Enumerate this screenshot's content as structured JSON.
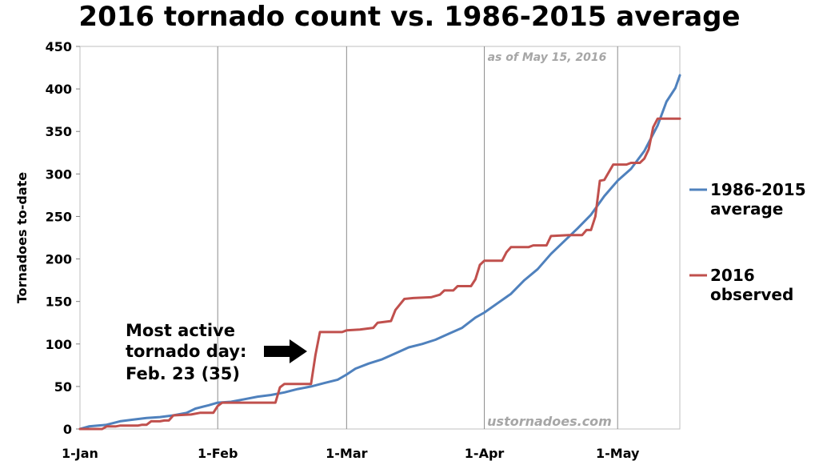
{
  "chart_data": {
    "type": "line",
    "title": "2016 tornado count vs. 1986-2015 average",
    "xlabel": "",
    "ylabel": "Tornadoes to-date",
    "xlim_day_of_year": [
      1,
      136
    ],
    "ylim": [
      0,
      450
    ],
    "yticks": [
      0,
      50,
      100,
      150,
      200,
      250,
      300,
      350,
      400,
      450
    ],
    "xticks": [
      {
        "label": "1-Jan",
        "day": 1
      },
      {
        "label": "1-Feb",
        "day": 32
      },
      {
        "label": "1-Mar",
        "day": 61
      },
      {
        "label": "1-Apr",
        "day": 92
      },
      {
        "label": "1-May",
        "day": 122
      }
    ],
    "grid": "vertical at month starts",
    "legend_position": "right",
    "series": [
      {
        "name": "1986-2015 average",
        "color": "#4f81bd",
        "points": [
          [
            1,
            0
          ],
          [
            3,
            3
          ],
          [
            5,
            4
          ],
          [
            7,
            5
          ],
          [
            10,
            9
          ],
          [
            13,
            11
          ],
          [
            16,
            13
          ],
          [
            19,
            14
          ],
          [
            22,
            16
          ],
          [
            25,
            19
          ],
          [
            27,
            24
          ],
          [
            30,
            28
          ],
          [
            32,
            31
          ],
          [
            35,
            32
          ],
          [
            38,
            35
          ],
          [
            41,
            38
          ],
          [
            44,
            40
          ],
          [
            47,
            43
          ],
          [
            50,
            47
          ],
          [
            53,
            50
          ],
          [
            56,
            54
          ],
          [
            59,
            58
          ],
          [
            61,
            64
          ],
          [
            63,
            71
          ],
          [
            66,
            77
          ],
          [
            69,
            82
          ],
          [
            72,
            89
          ],
          [
            75,
            96
          ],
          [
            78,
            100
          ],
          [
            81,
            105
          ],
          [
            84,
            112
          ],
          [
            87,
            119
          ],
          [
            90,
            131
          ],
          [
            92,
            137
          ],
          [
            95,
            148
          ],
          [
            98,
            159
          ],
          [
            101,
            175
          ],
          [
            104,
            188
          ],
          [
            107,
            206
          ],
          [
            110,
            221
          ],
          [
            113,
            236
          ],
          [
            116,
            252
          ],
          [
            119,
            274
          ],
          [
            122,
            292
          ],
          [
            125,
            306
          ],
          [
            128,
            327
          ],
          [
            131,
            357
          ],
          [
            133,
            385
          ],
          [
            135,
            401
          ],
          [
            136,
            416
          ]
        ]
      },
      {
        "name": "2016 observed",
        "color": "#c0504d",
        "points": [
          [
            1,
            0
          ],
          [
            6,
            0
          ],
          [
            7,
            3
          ],
          [
            9,
            3
          ],
          [
            10,
            4
          ],
          [
            14,
            4
          ],
          [
            15,
            5
          ],
          [
            16,
            5
          ],
          [
            17,
            9
          ],
          [
            19,
            9
          ],
          [
            20,
            10
          ],
          [
            21,
            10
          ],
          [
            22,
            16
          ],
          [
            26,
            17
          ],
          [
            28,
            19
          ],
          [
            31,
            19
          ],
          [
            32,
            27
          ],
          [
            33,
            31
          ],
          [
            45,
            31
          ],
          [
            46,
            49
          ],
          [
            47,
            53
          ],
          [
            53,
            53
          ],
          [
            54,
            87
          ],
          [
            55,
            114
          ],
          [
            60,
            114
          ],
          [
            61,
            116
          ],
          [
            64,
            117
          ],
          [
            67,
            119
          ],
          [
            68,
            125
          ],
          [
            71,
            127
          ],
          [
            72,
            140
          ],
          [
            74,
            153
          ],
          [
            76,
            154
          ],
          [
            80,
            155
          ],
          [
            82,
            158
          ],
          [
            83,
            163
          ],
          [
            85,
            163
          ],
          [
            86,
            168
          ],
          [
            89,
            168
          ],
          [
            90,
            176
          ],
          [
            91,
            193
          ],
          [
            92,
            198
          ],
          [
            96,
            198
          ],
          [
            97,
            208
          ],
          [
            98,
            214
          ],
          [
            102,
            214
          ],
          [
            103,
            216
          ],
          [
            106,
            216
          ],
          [
            107,
            227
          ],
          [
            111,
            228
          ],
          [
            114,
            228
          ],
          [
            115,
            234
          ],
          [
            116,
            234
          ],
          [
            117,
            250
          ],
          [
            118,
            292
          ],
          [
            119,
            293
          ],
          [
            121,
            311
          ],
          [
            124,
            311
          ],
          [
            125,
            313
          ],
          [
            127,
            313
          ],
          [
            128,
            318
          ],
          [
            129,
            329
          ],
          [
            130,
            355
          ],
          [
            131,
            365
          ],
          [
            136,
            365
          ]
        ]
      }
    ],
    "annotation": {
      "lines": [
        "Most active",
        "tornado day:",
        "Feb. 23 (35)"
      ],
      "points_to_day": 54
    },
    "as_of_note": "as of May 15, 2016",
    "source_watermark": "ustornadoes.com"
  }
}
